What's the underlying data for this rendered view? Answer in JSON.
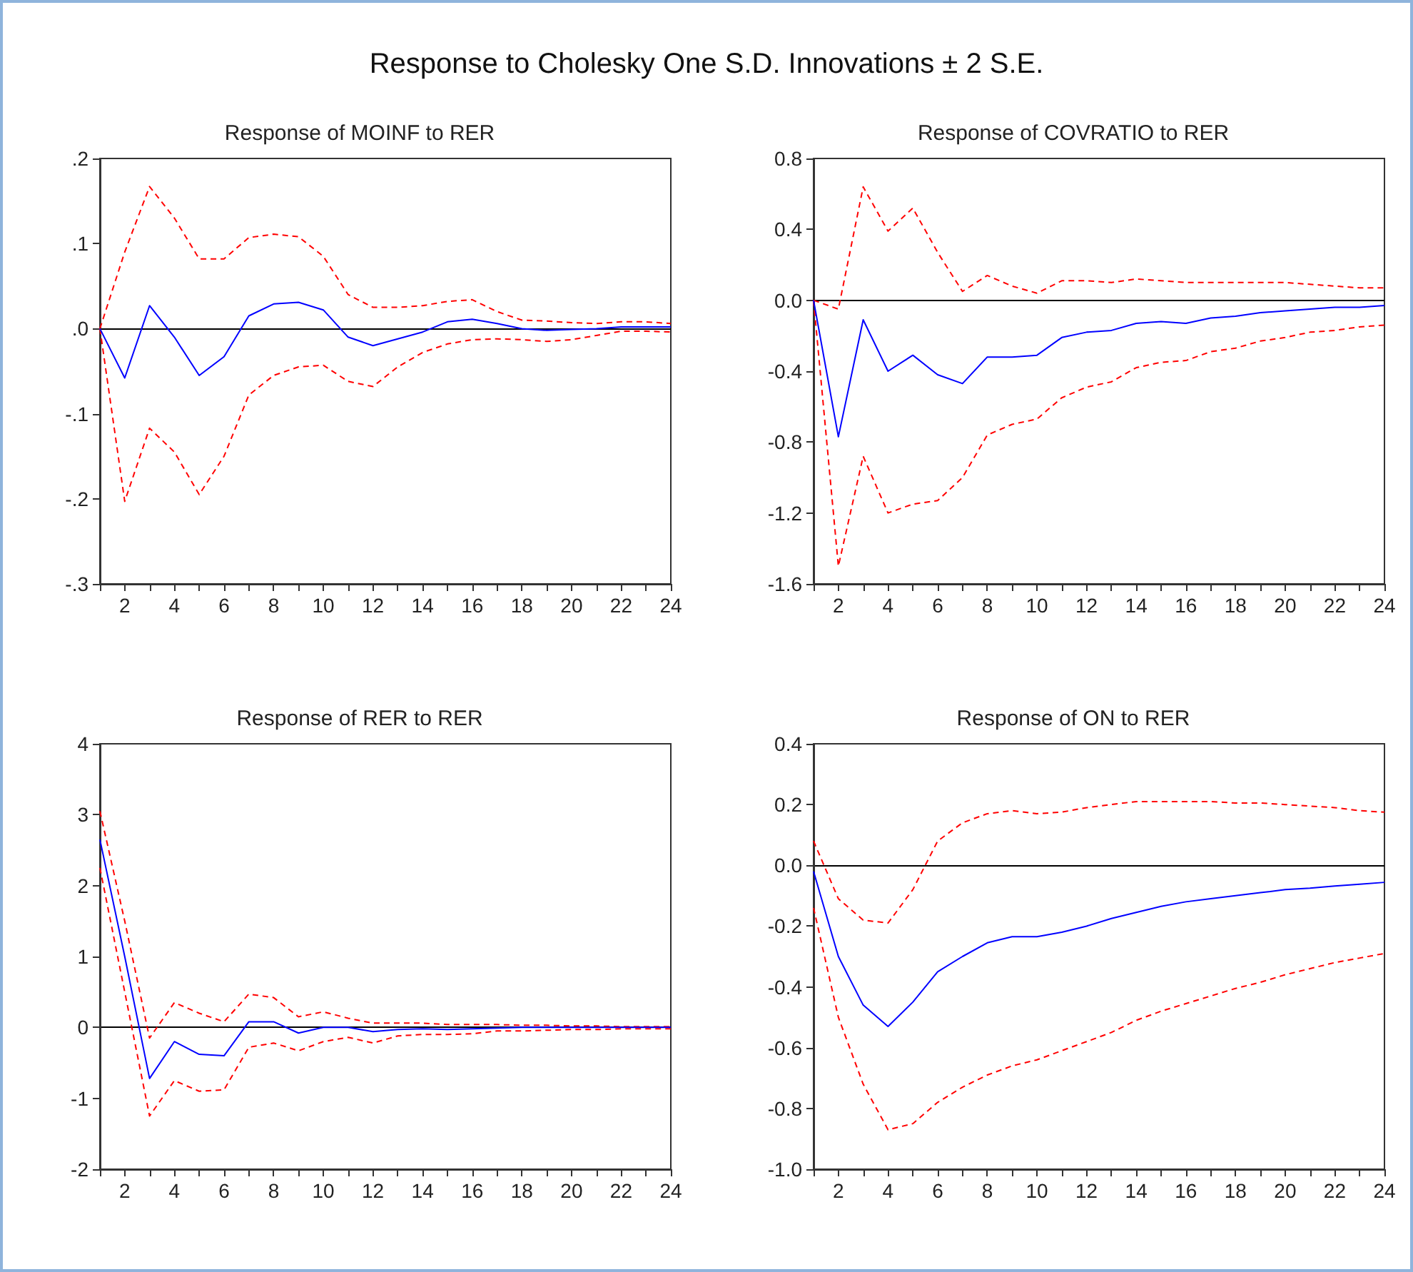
{
  "chart_data": [
    {
      "type": "line",
      "title": "Response of MOINF to RER",
      "annotations": [
        "Response to Cholesky One S.D. Innovations ± 2 S.E."
      ],
      "marker": "none",
      "x": [
        1,
        2,
        3,
        4,
        5,
        6,
        7,
        8,
        9,
        10,
        11,
        12,
        13,
        14,
        15,
        16,
        17,
        18,
        19,
        20,
        21,
        22,
        23,
        24
      ],
      "xlim": [
        1,
        24
      ],
      "xticks": [
        {
          "value": 1,
          "label": null
        },
        2,
        {
          "value": 3,
          "label": null
        },
        4,
        {
          "value": 5,
          "label": null
        },
        6,
        {
          "value": 7,
          "label": null
        },
        8,
        {
          "value": 9,
          "label": null
        },
        10,
        {
          "value": 11,
          "label": null
        },
        12,
        {
          "value": 13,
          "label": null
        },
        14,
        {
          "value": 15,
          "label": null
        },
        16,
        {
          "value": 17,
          "label": null
        },
        18,
        {
          "value": 19,
          "label": null
        },
        20,
        {
          "value": 21,
          "label": null
        },
        22,
        {
          "value": 23,
          "label": null
        },
        24
      ],
      "ylim": [
        -0.3,
        0.2
      ],
      "yticks": [
        {
          "value": -0.3,
          "label": "-.3"
        },
        {
          "value": -0.2,
          "label": "-.2"
        },
        {
          "value": -0.1,
          "label": "-.1"
        },
        {
          "value": 0,
          "label": ".0"
        },
        {
          "value": 0.1,
          "label": ".1"
        },
        {
          "value": 0.2,
          "label": ".2"
        }
      ],
      "ref_lines": [
        {
          "axis": "y",
          "value": 0,
          "color": "#000000"
        }
      ],
      "series": [
        {
          "color": "#0000ff",
          "line_style": "solid",
          "values": [
            0,
            -0.058,
            0.027,
            -0.01,
            -0.055,
            -0.033,
            0.015,
            0.029,
            0.031,
            0.022,
            -0.01,
            -0.02,
            -0.012,
            -0.004,
            0.008,
            0.011,
            0.006,
            0,
            -0.002,
            -0.001,
            0,
            0.002,
            0.002,
            0.002
          ]
        },
        {
          "color": "#ff0000",
          "line_style": "dashed",
          "values": [
            0,
            0.09,
            0.167,
            0.13,
            0.082,
            0.082,
            0.107,
            0.111,
            0.108,
            0.085,
            0.04,
            0.025,
            0.025,
            0.027,
            0.032,
            0.034,
            0.02,
            0.01,
            0.009,
            0.007,
            0.006,
            0.008,
            0.008,
            0.006
          ]
        },
        {
          "color": "#ff0000",
          "line_style": "dashed",
          "values": [
            0,
            -0.203,
            -0.117,
            -0.145,
            -0.195,
            -0.15,
            -0.078,
            -0.055,
            -0.045,
            -0.043,
            -0.062,
            -0.068,
            -0.045,
            -0.028,
            -0.018,
            -0.013,
            -0.012,
            -0.013,
            -0.015,
            -0.013,
            -0.008,
            -0.003,
            -0.003,
            -0.004
          ]
        }
      ]
    },
    {
      "type": "line",
      "title": "Response of COVRATIO to RER",
      "marker": "none",
      "x": [
        1,
        2,
        3,
        4,
        5,
        6,
        7,
        8,
        9,
        10,
        11,
        12,
        13,
        14,
        15,
        16,
        17,
        18,
        19,
        20,
        21,
        22,
        23,
        24
      ],
      "xlim": [
        1,
        24
      ],
      "xticks": [
        {
          "value": 1,
          "label": null
        },
        2,
        {
          "value": 3,
          "label": null
        },
        4,
        {
          "value": 5,
          "label": null
        },
        6,
        {
          "value": 7,
          "label": null
        },
        8,
        {
          "value": 9,
          "label": null
        },
        10,
        {
          "value": 11,
          "label": null
        },
        12,
        {
          "value": 13,
          "label": null
        },
        14,
        {
          "value": 15,
          "label": null
        },
        16,
        {
          "value": 17,
          "label": null
        },
        18,
        {
          "value": 19,
          "label": null
        },
        20,
        {
          "value": 21,
          "label": null
        },
        22,
        {
          "value": 23,
          "label": null
        },
        24
      ],
      "ylim": [
        -1.6,
        0.8
      ],
      "yticks": [
        -1.6,
        -1.2,
        -0.8,
        -0.4,
        {
          "value": 0,
          "label": "0.0"
        },
        0.4,
        0.8
      ],
      "ref_lines": [
        {
          "axis": "y",
          "value": 0,
          "color": "#000000"
        }
      ],
      "series": [
        {
          "color": "#0000ff",
          "line_style": "solid",
          "values": [
            0,
            -0.77,
            -0.11,
            -0.4,
            -0.31,
            -0.42,
            -0.47,
            -0.32,
            -0.32,
            -0.31,
            -0.21,
            -0.18,
            -0.17,
            -0.13,
            -0.12,
            -0.13,
            -0.1,
            -0.09,
            -0.07,
            -0.06,
            -0.05,
            -0.04,
            -0.04,
            -0.03
          ]
        },
        {
          "color": "#ff0000",
          "line_style": "dashed",
          "values": [
            0,
            -0.05,
            0.64,
            0.39,
            0.52,
            0.27,
            0.05,
            0.14,
            0.08,
            0.04,
            0.11,
            0.11,
            0.1,
            0.12,
            0.11,
            0.1,
            0.1,
            0.1,
            0.1,
            0.1,
            0.09,
            0.08,
            0.07,
            0.07
          ]
        },
        {
          "color": "#ff0000",
          "line_style": "dashed",
          "values": [
            0,
            -1.5,
            -0.88,
            -1.2,
            -1.15,
            -1.13,
            -1.0,
            -0.76,
            -0.7,
            -0.67,
            -0.55,
            -0.49,
            -0.46,
            -0.38,
            -0.35,
            -0.34,
            -0.29,
            -0.27,
            -0.23,
            -0.21,
            -0.18,
            -0.17,
            -0.15,
            -0.14
          ]
        }
      ]
    },
    {
      "type": "line",
      "title": "Response of RER to RER",
      "marker": "none",
      "x": [
        1,
        2,
        3,
        4,
        5,
        6,
        7,
        8,
        9,
        10,
        11,
        12,
        13,
        14,
        15,
        16,
        17,
        18,
        19,
        20,
        21,
        22,
        23,
        24
      ],
      "xlim": [
        1,
        24
      ],
      "xticks": [
        {
          "value": 1,
          "label": null
        },
        2,
        {
          "value": 3,
          "label": null
        },
        4,
        {
          "value": 5,
          "label": null
        },
        6,
        {
          "value": 7,
          "label": null
        },
        8,
        {
          "value": 9,
          "label": null
        },
        10,
        {
          "value": 11,
          "label": null
        },
        12,
        {
          "value": 13,
          "label": null
        },
        14,
        {
          "value": 15,
          "label": null
        },
        16,
        {
          "value": 17,
          "label": null
        },
        18,
        {
          "value": 19,
          "label": null
        },
        20,
        {
          "value": 21,
          "label": null
        },
        22,
        {
          "value": 23,
          "label": null
        },
        24
      ],
      "ylim": [
        -2,
        4
      ],
      "yticks": [
        -2,
        -1,
        0,
        1,
        2,
        3,
        4
      ],
      "ref_lines": [
        {
          "axis": "y",
          "value": 0,
          "color": "#000000"
        }
      ],
      "series": [
        {
          "color": "#0000ff",
          "line_style": "solid",
          "values": [
            2.65,
            1.0,
            -0.72,
            -0.2,
            -0.38,
            -0.4,
            0.08,
            0.08,
            -0.08,
            0,
            0,
            -0.06,
            -0.03,
            -0.02,
            -0.03,
            -0.02,
            -0.01,
            0,
            0,
            0,
            0,
            0,
            0,
            0
          ]
        },
        {
          "color": "#ff0000",
          "line_style": "dashed",
          "values": [
            3.05,
            1.5,
            -0.15,
            0.35,
            0.2,
            0.08,
            0.47,
            0.42,
            0.15,
            0.22,
            0.13,
            0.06,
            0.06,
            0.06,
            0.04,
            0.04,
            0.04,
            0.03,
            0.03,
            0.02,
            0.02,
            0.01,
            0.01,
            0.01
          ]
        },
        {
          "color": "#ff0000",
          "line_style": "dashed",
          "values": [
            2.25,
            0.5,
            -1.25,
            -0.75,
            -0.9,
            -0.88,
            -0.28,
            -0.22,
            -0.33,
            -0.2,
            -0.14,
            -0.22,
            -0.12,
            -0.1,
            -0.1,
            -0.09,
            -0.05,
            -0.05,
            -0.04,
            -0.03,
            -0.03,
            -0.02,
            -0.02,
            -0.02
          ]
        }
      ]
    },
    {
      "type": "line",
      "title": "Response of ON to RER",
      "marker": "none",
      "x": [
        1,
        2,
        3,
        4,
        5,
        6,
        7,
        8,
        9,
        10,
        11,
        12,
        13,
        14,
        15,
        16,
        17,
        18,
        19,
        20,
        21,
        22,
        23,
        24
      ],
      "xlim": [
        1,
        24
      ],
      "xticks": [
        {
          "value": 1,
          "label": null
        },
        2,
        {
          "value": 3,
          "label": null
        },
        4,
        {
          "value": 5,
          "label": null
        },
        6,
        {
          "value": 7,
          "label": null
        },
        8,
        {
          "value": 9,
          "label": null
        },
        10,
        {
          "value": 11,
          "label": null
        },
        12,
        {
          "value": 13,
          "label": null
        },
        14,
        {
          "value": 15,
          "label": null
        },
        16,
        {
          "value": 17,
          "label": null
        },
        18,
        {
          "value": 19,
          "label": null
        },
        20,
        {
          "value": 21,
          "label": null
        },
        22,
        {
          "value": 23,
          "label": null
        },
        24
      ],
      "ylim": [
        -1.0,
        0.4
      ],
      "yticks": [
        {
          "value": -1,
          "label": "-1.0"
        },
        -0.8,
        -0.6,
        -0.4,
        -0.2,
        {
          "value": 0,
          "label": "0.0"
        },
        0.2,
        0.4
      ],
      "ref_lines": [
        {
          "axis": "y",
          "value": 0,
          "color": "#000000"
        }
      ],
      "series": [
        {
          "color": "#0000ff",
          "line_style": "solid",
          "values": [
            -0.02,
            -0.3,
            -0.46,
            -0.53,
            -0.45,
            -0.35,
            -0.3,
            -0.255,
            -0.235,
            -0.235,
            -0.22,
            -0.2,
            -0.175,
            -0.155,
            -0.135,
            -0.12,
            -0.11,
            -0.1,
            -0.09,
            -0.08,
            -0.075,
            -0.068,
            -0.062,
            -0.056
          ]
        },
        {
          "color": "#ff0000",
          "line_style": "dashed",
          "values": [
            0.08,
            -0.11,
            -0.18,
            -0.19,
            -0.08,
            0.08,
            0.14,
            0.17,
            0.18,
            0.17,
            0.175,
            0.19,
            0.2,
            0.21,
            0.21,
            0.21,
            0.21,
            0.205,
            0.205,
            0.2,
            0.195,
            0.19,
            0.18,
            0.175
          ]
        },
        {
          "color": "#ff0000",
          "line_style": "dashed",
          "values": [
            -0.14,
            -0.5,
            -0.72,
            -0.87,
            -0.85,
            -0.78,
            -0.73,
            -0.69,
            -0.66,
            -0.64,
            -0.61,
            -0.58,
            -0.55,
            -0.51,
            -0.48,
            -0.455,
            -0.43,
            -0.405,
            -0.385,
            -0.36,
            -0.34,
            -0.32,
            -0.305,
            -0.29
          ]
        }
      ]
    }
  ]
}
